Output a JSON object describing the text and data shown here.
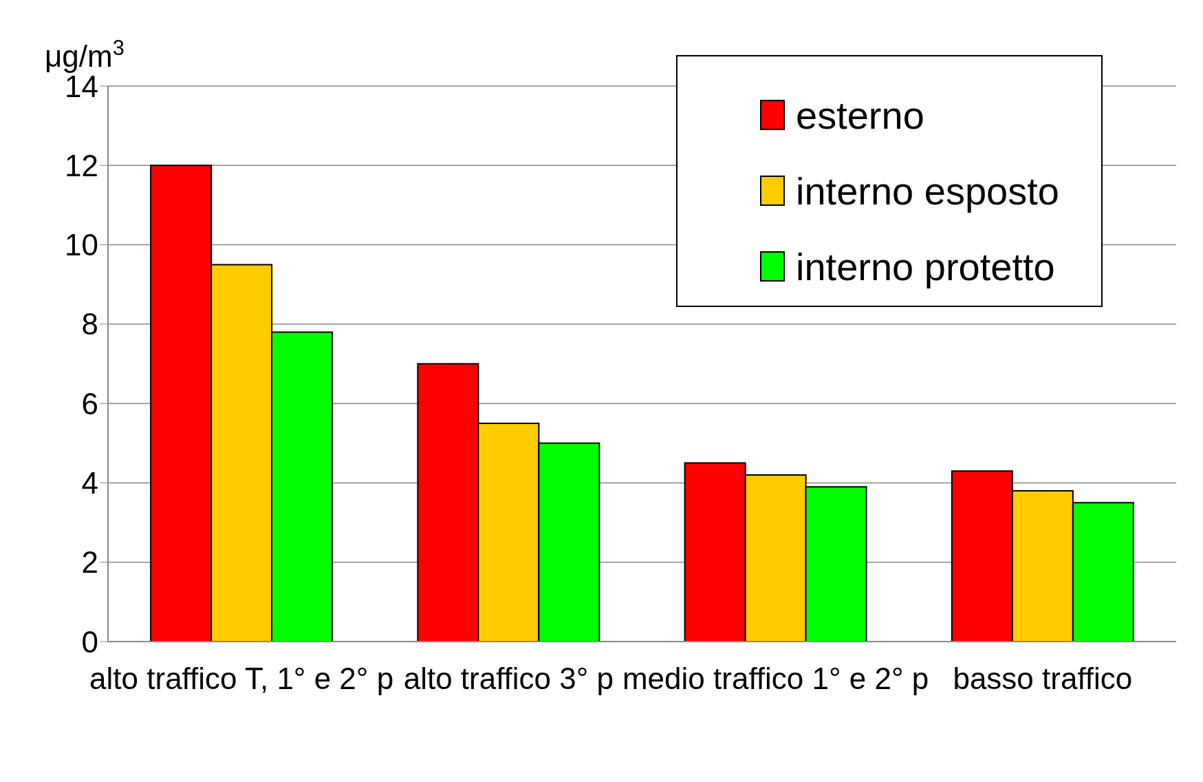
{
  "chart_data": {
    "type": "bar",
    "ylabel": "μg/m$^{3}$",
    "categories": [
      "alto traffico T, 1° e 2° p",
      "alto traffico 3° p",
      "medio traffico 1° e 2° p",
      "basso traffico"
    ],
    "series": [
      {
        "name": "esterno",
        "color": "#ff0000",
        "values": [
          12,
          7,
          4.5,
          4.3
        ]
      },
      {
        "name": "interno esposto",
        "color": "#ffcc00",
        "values": [
          9.5,
          5.5,
          4.2,
          3.8
        ]
      },
      {
        "name": "interno protetto",
        "color": "#00ff00",
        "values": [
          7.8,
          5.0,
          3.9,
          3.5
        ]
      }
    ],
    "ylim": [
      0,
      14
    ],
    "yticks": [
      0,
      2,
      4,
      6,
      8,
      10,
      12,
      14
    ],
    "grid": "y",
    "legend": "top right"
  }
}
